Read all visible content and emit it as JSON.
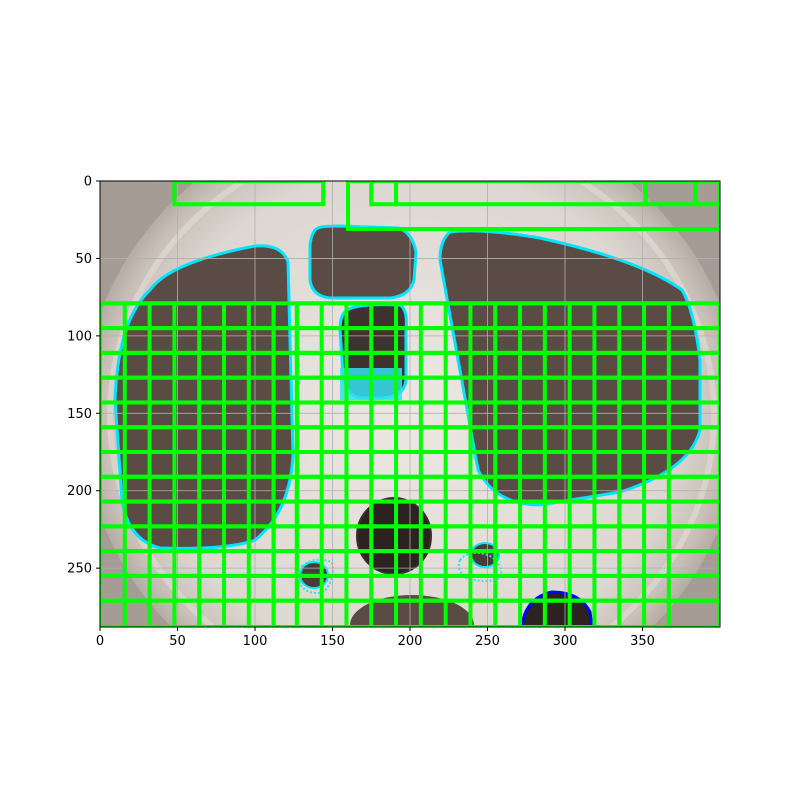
{
  "figure": {
    "x_ticks": [
      "0",
      "50",
      "100",
      "150",
      "200",
      "250",
      "300",
      "350"
    ],
    "y_ticks": [
      "0",
      "50",
      "100",
      "150",
      "200",
      "250"
    ],
    "x_tick_values": [
      0,
      50,
      100,
      150,
      200,
      250,
      300,
      350
    ],
    "y_tick_values": [
      0,
      50,
      100,
      150,
      200,
      250
    ],
    "xlim": [
      0,
      400
    ],
    "ylim": [
      288,
      0
    ],
    "grid": true,
    "grid_color": "#b0b0b0",
    "box_color": "#00ff00",
    "highlight_color": "#00e5ff",
    "outline_color": "#0000ff"
  },
  "boxes": [
    [
      48,
      0,
      96,
      15
    ],
    [
      175,
      0,
      16,
      15
    ],
    [
      191,
      0,
      161,
      15
    ],
    [
      352,
      0,
      32,
      15
    ],
    [
      384,
      0,
      16,
      15
    ],
    [
      160,
      0,
      240,
      31
    ],
    [
      0,
      79,
      112,
      209
    ],
    [
      127,
      79,
      273,
      209
    ],
    [
      0,
      95,
      400,
      193
    ],
    [
      0,
      111,
      400,
      177
    ],
    [
      0,
      127,
      400,
      161
    ],
    [
      0,
      143,
      400,
      145
    ],
    [
      0,
      159,
      400,
      129
    ],
    [
      0,
      175,
      400,
      113
    ],
    [
      0,
      191,
      400,
      97
    ],
    [
      0,
      207,
      400,
      81
    ],
    [
      0,
      223,
      400,
      65
    ],
    [
      0,
      239,
      400,
      49
    ],
    [
      0,
      255,
      400,
      33
    ],
    [
      0,
      271,
      400,
      17
    ]
  ],
  "vlines": [
    16,
    32,
    48,
    64,
    80,
    96,
    112,
    127,
    143,
    159,
    175,
    191,
    207,
    223,
    239,
    255,
    271,
    287,
    303,
    319,
    335,
    351,
    367
  ],
  "hlines": [
    79,
    95,
    111,
    127,
    143,
    159,
    175,
    191,
    207,
    223,
    239,
    255,
    271
  ]
}
